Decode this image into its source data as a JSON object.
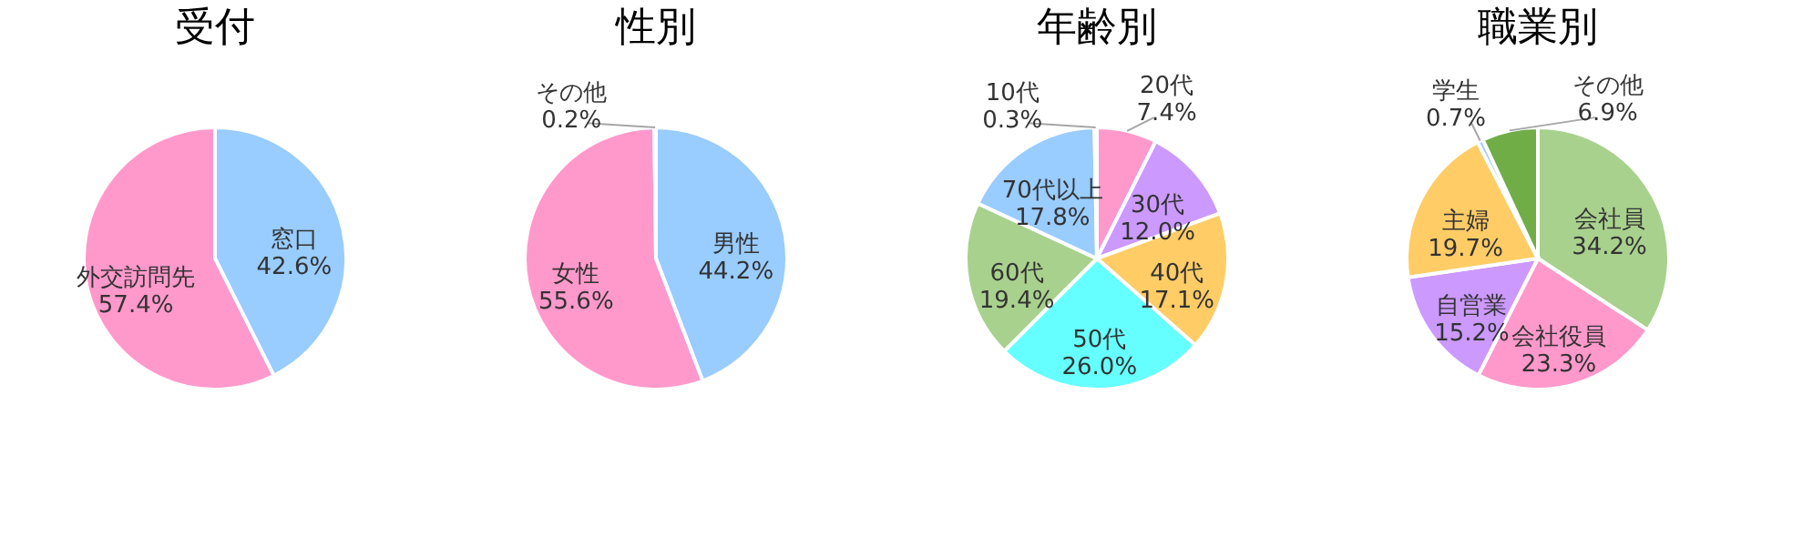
{
  "chart_data": [
    {
      "type": "pie",
      "title": "受付",
      "categories": [
        "窓口",
        "外交訪問先"
      ],
      "values": [
        42.6,
        57.4
      ],
      "value_labels": [
        "42.6%",
        "57.4%"
      ],
      "colors": [
        "#99ccff",
        "#ff99cc"
      ],
      "data_labels": true,
      "legend": false
    },
    {
      "type": "pie",
      "title": "性別",
      "categories": [
        "男性",
        "女性",
        "その他"
      ],
      "values": [
        44.2,
        55.6,
        0.2
      ],
      "value_labels": [
        "44.2%",
        "55.6%",
        "0.2%"
      ],
      "colors": [
        "#99ccff",
        "#ff99cc",
        "#bfbfbf"
      ],
      "data_labels": true,
      "legend": false
    },
    {
      "type": "pie",
      "title": "年齢別",
      "categories": [
        "20代",
        "30代",
        "40代",
        "50代",
        "60代",
        "70代以上",
        "10代"
      ],
      "values": [
        7.4,
        12.0,
        17.1,
        26.0,
        19.4,
        17.8,
        0.3
      ],
      "value_labels": [
        "7.4%",
        "12.0%",
        "17.1%",
        "26.0%",
        "19.4%",
        "17.8%",
        "0.3%"
      ],
      "colors": [
        "#ff99cc",
        "#cc99ff",
        "#ffcc66",
        "#66ffff",
        "#a9d18e",
        "#99ccff",
        "#bfbfbf"
      ],
      "data_labels": true,
      "legend": false
    },
    {
      "type": "pie",
      "title": "職業別",
      "categories": [
        "会社員",
        "会社役員",
        "自営業",
        "主婦",
        "学生",
        "その他"
      ],
      "values": [
        34.2,
        23.3,
        15.2,
        19.7,
        0.7,
        6.9
      ],
      "value_labels": [
        "34.2%",
        "23.3%",
        "15.2%",
        "19.7%",
        "0.7%",
        "6.9%"
      ],
      "colors": [
        "#a9d18e",
        "#ff99cc",
        "#cc99ff",
        "#ffcc66",
        "#99ccff",
        "#70ad47"
      ],
      "data_labels": true,
      "legend": false
    }
  ]
}
